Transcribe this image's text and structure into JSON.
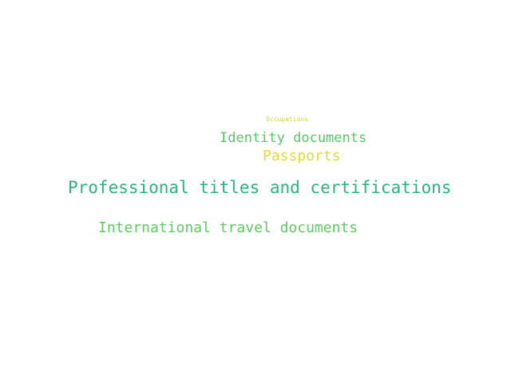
{
  "words": [
    {
      "text": "Occupations",
      "color": "#c8d93a"
    },
    {
      "text": "Identity documents",
      "color": "#5cc46a"
    },
    {
      "text": "Passports",
      "color": "#dedd3a"
    },
    {
      "text": "Professional titles and certifications",
      "color": "#2db27d"
    },
    {
      "text": "International travel documents",
      "color": "#5ec962"
    }
  ]
}
